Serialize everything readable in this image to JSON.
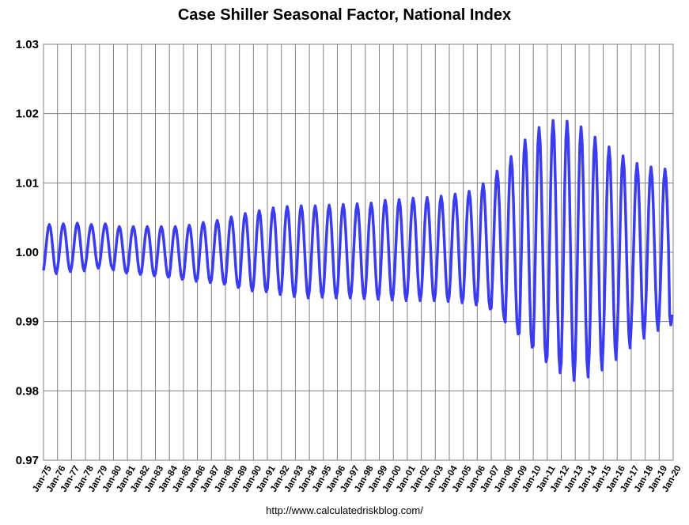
{
  "chart_data": {
    "type": "line",
    "title": "Case Shiller Seasonal Factor, National Index",
    "source_note": "http://www.calculatedriskblog.com/",
    "xlabel": "",
    "ylabel": "",
    "ylim": [
      0.97,
      1.03
    ],
    "yticks": [
      0.97,
      0.98,
      0.99,
      1.0,
      1.01,
      1.02,
      1.03
    ],
    "ytick_labels": [
      "0.97",
      "0.98",
      "0.99",
      "1.00",
      "1.01",
      "1.02",
      "1.03"
    ],
    "xlim": [
      "1975-01",
      "2020-01"
    ],
    "xtick_labels": [
      "Jan-75",
      "Jan-76",
      "Jan-77",
      "Jan-78",
      "Jan-79",
      "Jan-80",
      "Jan-81",
      "Jan-82",
      "Jan-83",
      "Jan-84",
      "Jan-85",
      "Jan-86",
      "Jan-87",
      "Jan-88",
      "Jan-89",
      "Jan-90",
      "Jan-91",
      "Jan-92",
      "Jan-93",
      "Jan-94",
      "Jan-95",
      "Jan-96",
      "Jan-97",
      "Jan-98",
      "Jan-99",
      "Jan-00",
      "Jan-01",
      "Jan-02",
      "Jan-03",
      "Jan-04",
      "Jan-05",
      "Jan-06",
      "Jan-07",
      "Jan-08",
      "Jan-09",
      "Jan-10",
      "Jan-11",
      "Jan-12",
      "Jan-13",
      "Jan-14",
      "Jan-15",
      "Jan-16",
      "Jan-17",
      "Jan-18",
      "Jan-19",
      "Jan-20"
    ],
    "grid": true,
    "legend": "none",
    "series": [
      {
        "color": "#3b3bf0",
        "yearly_range": {
          "years": [
            1975,
            1976,
            1977,
            1978,
            1979,
            1980,
            1981,
            1982,
            1983,
            1984,
            1985,
            1986,
            1987,
            1988,
            1989,
            1990,
            1991,
            1992,
            1993,
            1994,
            1995,
            1996,
            1997,
            1998,
            1999,
            2000,
            2001,
            2002,
            2003,
            2004,
            2005,
            2006,
            2007,
            2008,
            2009,
            2010,
            2011,
            2012,
            2013,
            2014,
            2015,
            2016,
            2017,
            2018,
            2019
          ],
          "peak": [
            1.004,
            1.0041,
            1.0042,
            1.004,
            1.0041,
            1.0037,
            1.0037,
            1.0037,
            1.0037,
            1.0037,
            1.0039,
            1.0043,
            1.0046,
            1.0051,
            1.0056,
            1.006,
            1.0064,
            1.0066,
            1.0067,
            1.0067,
            1.0068,
            1.0069,
            1.007,
            1.0071,
            1.0075,
            1.0076,
            1.0078,
            1.0079,
            1.0081,
            1.0084,
            1.0088,
            1.0099,
            1.0117,
            1.0138,
            1.0162,
            1.018,
            1.019,
            1.0189,
            1.0181,
            1.0166,
            1.0152,
            1.0139,
            1.0128,
            1.0123,
            1.012
          ],
          "trough": [
            0.9969,
            0.9972,
            0.9973,
            0.9977,
            0.9977,
            0.997,
            0.9968,
            0.9966,
            0.9964,
            0.9961,
            0.9958,
            0.9956,
            0.9954,
            0.9949,
            0.9944,
            0.9943,
            0.9939,
            0.9936,
            0.9934,
            0.9935,
            0.9934,
            0.9934,
            0.9933,
            0.9932,
            0.9931,
            0.993,
            0.993,
            0.993,
            0.9929,
            0.9927,
            0.9924,
            0.9918,
            0.9905,
            0.9882,
            0.9863,
            0.9842,
            0.9826,
            0.9815,
            0.982,
            0.983,
            0.9845,
            0.9862,
            0.9876,
            0.9887,
            0.9893
          ],
          "final_months": [
            [
              "2019-10",
              0.9909
            ],
            [
              "2019-11",
              0.9895
            ],
            [
              "2019-12",
              0.991
            ]
          ]
        }
      }
    ]
  }
}
